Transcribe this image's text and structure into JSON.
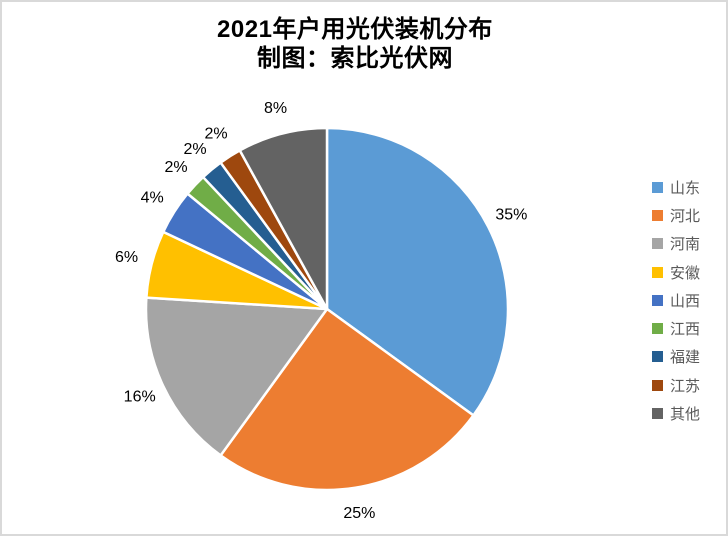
{
  "title": {
    "line1": "2021年户用光伏装机分布",
    "line2": "制图：索比光伏网"
  },
  "chart_data": {
    "type": "pie",
    "title": "2021年户用光伏装机分布",
    "subtitle": "制图：索比光伏网",
    "categories": [
      "山东",
      "河北",
      "河南",
      "安徽",
      "山西",
      "江西",
      "福建",
      "江苏",
      "其他"
    ],
    "values": [
      35,
      25,
      16,
      6,
      4,
      2,
      2,
      2,
      8
    ],
    "labels": [
      "35%",
      "25%",
      "16%",
      "6%",
      "4%",
      "2%",
      "2%",
      "2%",
      "8%"
    ],
    "colors": [
      "#5B9BD5",
      "#ED7D31",
      "#A5A5A5",
      "#FFC000",
      "#4472C4",
      "#70AD47",
      "#255E91",
      "#9E480E",
      "#636363"
    ],
    "start_angle_deg": 0,
    "direction": "clockwise",
    "legend_position": "right",
    "separator_color": "#FFFFFF",
    "label_color": "#000000",
    "legend_text_color": "#595959",
    "frame_border_color": "#D9D9D9"
  }
}
